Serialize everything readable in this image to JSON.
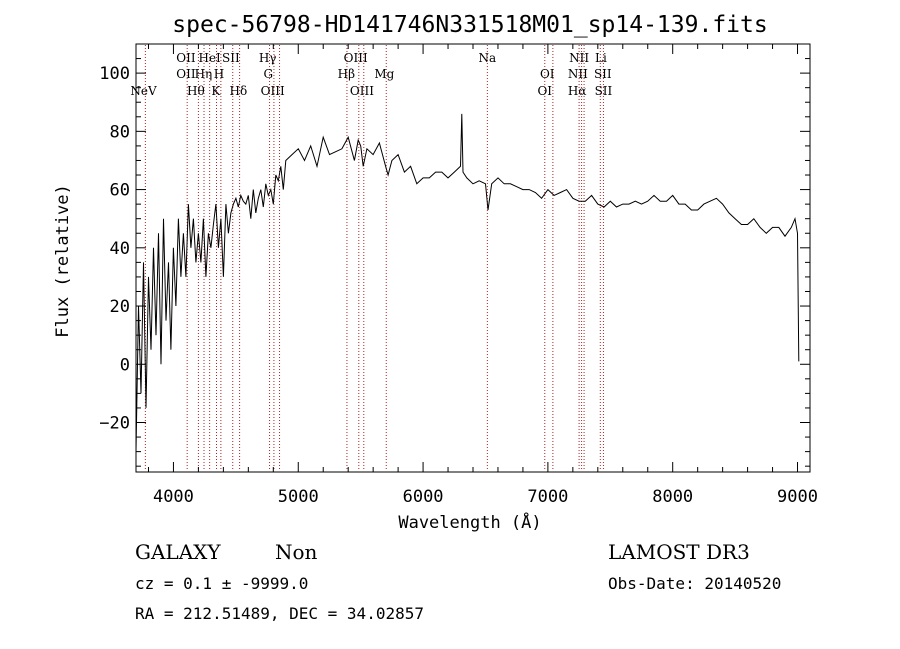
{
  "chart_data": {
    "type": "line",
    "title": "spec-56798-HD141746N331518M01_sp14-139.fits",
    "xlabel": "Wavelength (Å)",
    "ylabel": "Flux (relative)",
    "xlim": [
      3700,
      9100
    ],
    "ylim": [
      -37,
      110
    ],
    "xticks": [
      4000,
      5000,
      6000,
      7000,
      8000,
      9000
    ],
    "yticks": [
      -20,
      0,
      20,
      40,
      60,
      80,
      100
    ],
    "grid": false,
    "series": [
      {
        "name": "spectrum",
        "x": [
          3700,
          3720,
          3740,
          3760,
          3780,
          3800,
          3820,
          3840,
          3860,
          3880,
          3900,
          3920,
          3940,
          3960,
          3980,
          4000,
          4020,
          4040,
          4060,
          4080,
          4100,
          4120,
          4140,
          4160,
          4180,
          4200,
          4220,
          4240,
          4260,
          4280,
          4300,
          4320,
          4340,
          4360,
          4380,
          4400,
          4420,
          4440,
          4460,
          4480,
          4500,
          4520,
          4540,
          4560,
          4580,
          4600,
          4620,
          4640,
          4660,
          4680,
          4700,
          4720,
          4740,
          4760,
          4780,
          4800,
          4820,
          4840,
          4860,
          4880,
          4900,
          4950,
          5000,
          5050,
          5100,
          5150,
          5200,
          5250,
          5300,
          5350,
          5400,
          5450,
          5480,
          5500,
          5520,
          5550,
          5600,
          5650,
          5700,
          5720,
          5750,
          5800,
          5850,
          5900,
          5950,
          6000,
          6050,
          6100,
          6150,
          6200,
          6250,
          6300,
          6310,
          6320,
          6350,
          6400,
          6450,
          6500,
          6520,
          6550,
          6600,
          6650,
          6700,
          6750,
          6800,
          6850,
          6900,
          6950,
          7000,
          7050,
          7100,
          7150,
          7200,
          7250,
          7300,
          7350,
          7400,
          7450,
          7500,
          7550,
          7600,
          7650,
          7700,
          7750,
          7800,
          7850,
          7900,
          7950,
          8000,
          8050,
          8100,
          8150,
          8200,
          8250,
          8300,
          8350,
          8400,
          8450,
          8500,
          8550,
          8600,
          8650,
          8700,
          8750,
          8800,
          8850,
          8900,
          8950,
          8980,
          9000,
          9010
        ],
        "y": [
          -30,
          20,
          -10,
          35,
          -15,
          30,
          5,
          40,
          10,
          45,
          0,
          50,
          15,
          35,
          5,
          40,
          20,
          50,
          30,
          45,
          30,
          55,
          40,
          50,
          35,
          45,
          35,
          50,
          30,
          45,
          40,
          48,
          55,
          40,
          50,
          30,
          55,
          45,
          52,
          55,
          57,
          54,
          58,
          56,
          55,
          58,
          50,
          60,
          52,
          57,
          60,
          54,
          62,
          58,
          60,
          55,
          65,
          63,
          68,
          60,
          70,
          72,
          74,
          70,
          75,
          68,
          78,
          72,
          73,
          74,
          78,
          70,
          77,
          75,
          68,
          74,
          72,
          76,
          68,
          65,
          70,
          72,
          66,
          68,
          62,
          64,
          64,
          66,
          66,
          64,
          66,
          68,
          86,
          66,
          64,
          62,
          63,
          62,
          53,
          62,
          64,
          62,
          62,
          61,
          60,
          60,
          59,
          57,
          60,
          58,
          59,
          60,
          57,
          56,
          56,
          58,
          55,
          54,
          56,
          54,
          55,
          55,
          56,
          55,
          56,
          58,
          56,
          56,
          58,
          55,
          55,
          53,
          53,
          55,
          56,
          57,
          55,
          52,
          50,
          48,
          48,
          50,
          47,
          45,
          47,
          47,
          44,
          47,
          50,
          45,
          1
        ]
      }
    ],
    "lines": [
      {
        "label": "NeV",
        "x": 3760,
        "row": 3
      },
      {
        "label": "OII",
        "x": 4100,
        "row": 1
      },
      {
        "label": "OII",
        "x": 4100,
        "row": 2
      },
      {
        "label": "Hθ",
        "x": 4180,
        "row": 3
      },
      {
        "label": "Hη",
        "x": 4240,
        "row": 2
      },
      {
        "label": "HeI",
        "x": 4290,
        "row": 1
      },
      {
        "label": "K",
        "x": 4340,
        "row": 3
      },
      {
        "label": "H",
        "x": 4365,
        "row": 2
      },
      {
        "label": "SII",
        "x": 4460,
        "row": 1
      },
      {
        "label": "Hδ",
        "x": 4520,
        "row": 3
      },
      {
        "label": "Hγ",
        "x": 4755,
        "row": 1
      },
      {
        "label": "G",
        "x": 4760,
        "row": 2
      },
      {
        "label": "OIII",
        "x": 4795,
        "row": 3
      },
      {
        "label": "Hβ",
        "x": 5385,
        "row": 2
      },
      {
        "label": "OIII",
        "x": 5460,
        "row": 1
      },
      {
        "label": "OIII",
        "x": 5510,
        "row": 3
      },
      {
        "label": "Mg",
        "x": 5690,
        "row": 2
      },
      {
        "label": "Na",
        "x": 6515,
        "row": 1
      },
      {
        "label": "OI",
        "x": 6995,
        "row": 2
      },
      {
        "label": "OI",
        "x": 6975,
        "row": 3
      },
      {
        "label": "NII",
        "x": 7250,
        "row": 1
      },
      {
        "label": "NII",
        "x": 7240,
        "row": 2
      },
      {
        "label": "Hα",
        "x": 7235,
        "row": 3
      },
      {
        "label": "Li",
        "x": 7425,
        "row": 1
      },
      {
        "label": "SII",
        "x": 7440,
        "row": 2
      },
      {
        "label": "SII",
        "x": 7445,
        "row": 3
      }
    ],
    "line_positions": [
      3775,
      4110,
      4200,
      4245,
      4290,
      4345,
      4380,
      4475,
      4530,
      4770,
      4805,
      4850,
      5390,
      5485,
      5525,
      5705,
      6515,
      6975,
      7040,
      7250,
      7270,
      7290,
      7420,
      7445
    ]
  },
  "footer": {
    "object_type": "GALAXY",
    "subclass": "Non",
    "survey": "LAMOST DR3",
    "redshift": "cz = 0.1 ± -9999.0",
    "obs_date": "Obs-Date: 20140520",
    "coords": "RA = 212.51489, DEC =  34.02857"
  },
  "colors": {
    "spectrum": "#000000",
    "lines": "#b22222",
    "axes": "#000000"
  }
}
